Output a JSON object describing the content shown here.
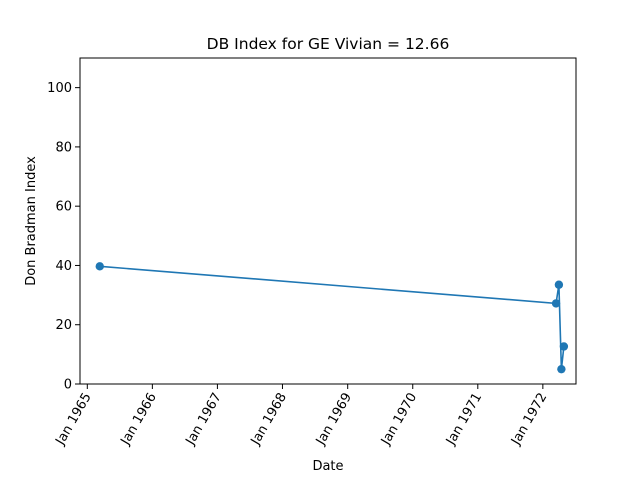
{
  "chart_data": {
    "type": "line",
    "title": "DB Index for GE Vivian = 12.66",
    "xlabel": "Date",
    "ylabel": "Don Bradman Index",
    "x_ticks": [
      "Jan 1965",
      "Jan 1966",
      "Jan 1967",
      "Jan 1968",
      "Jan 1969",
      "Jan 1970",
      "Jan 1971",
      "Jan 1972"
    ],
    "y_ticks": [
      0,
      20,
      40,
      60,
      80,
      100
    ],
    "xlim": [
      "1964-11-21",
      "1972-07-05"
    ],
    "ylim": [
      0,
      110
    ],
    "grid": false,
    "series": [
      {
        "color": "#1f77b4",
        "marker": "circle",
        "points": [
          {
            "x": "1965-03-12",
            "y": 39.7
          },
          {
            "x": "1972-03-15",
            "y": 27.2
          },
          {
            "x": "1972-03-31",
            "y": 33.5
          },
          {
            "x": "1972-04-14",
            "y": 5.0
          },
          {
            "x": "1972-04-28",
            "y": 12.66
          }
        ]
      }
    ]
  }
}
